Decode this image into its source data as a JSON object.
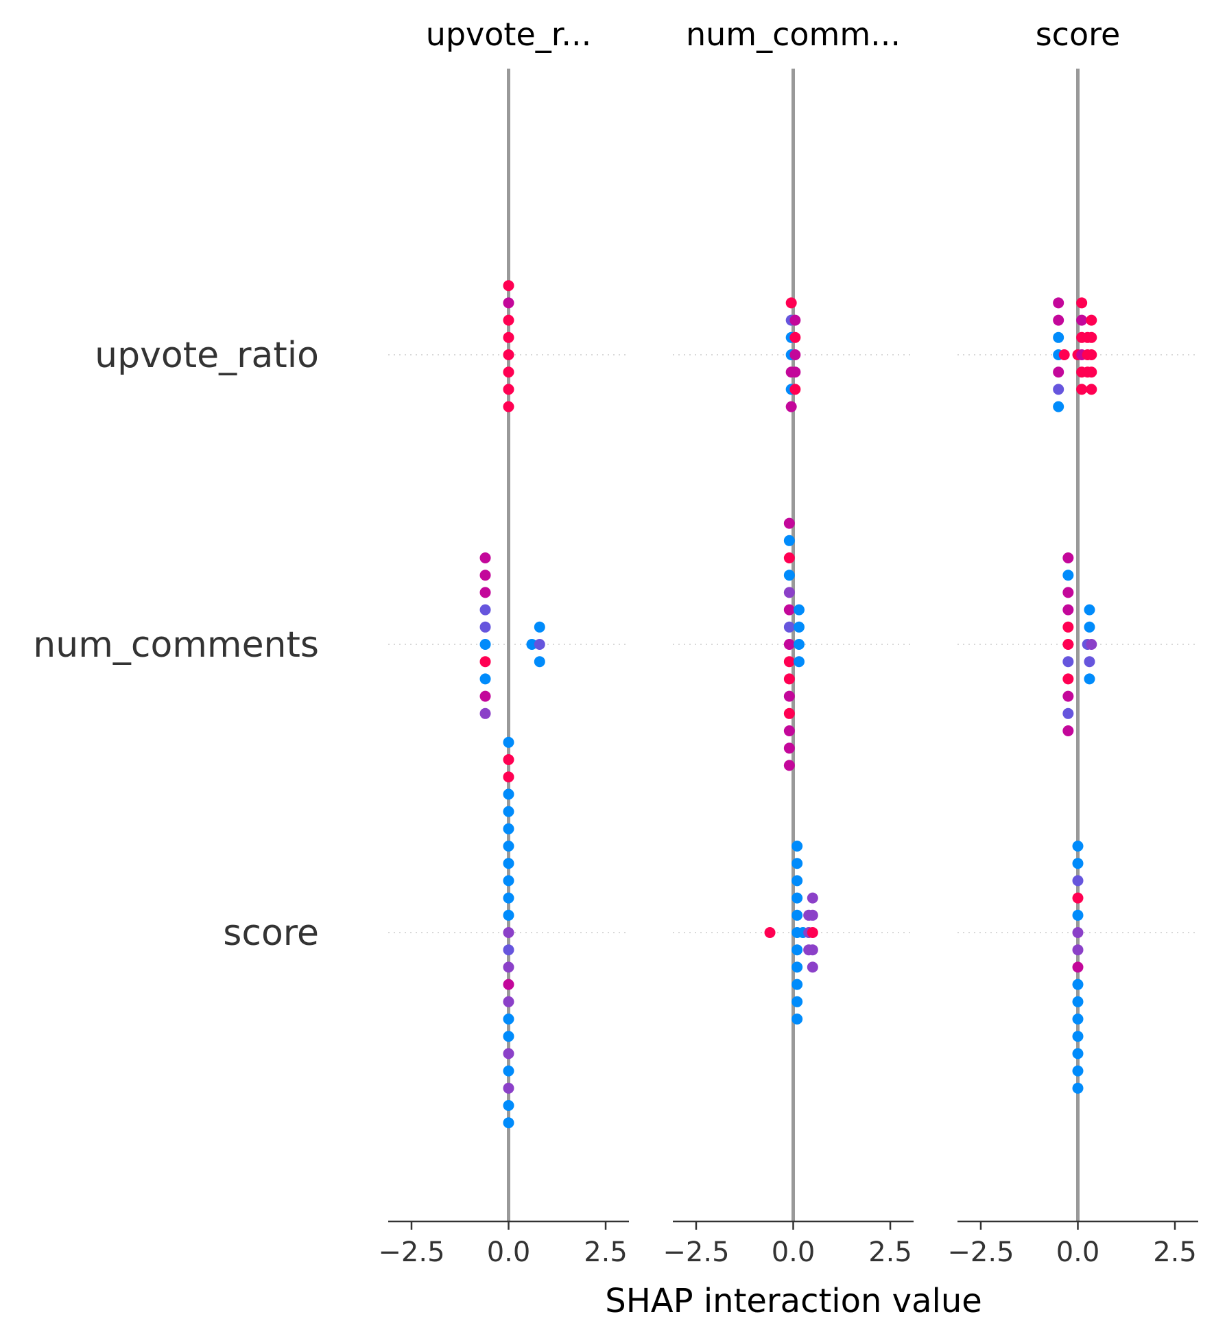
{
  "chart_data": {
    "type": "scatter",
    "subtype": "shap-interaction-summary",
    "xlabel": "SHAP interaction value",
    "features": [
      "upvote_ratio",
      "num_comments",
      "score"
    ],
    "column_titles": [
      "upvote_r...",
      "num_comm...",
      "score"
    ],
    "xlim": [
      -3.1,
      3.1
    ],
    "x_ticks": [
      -2.5,
      0.0,
      2.5
    ],
    "x_tick_labels": [
      "−2.5",
      "0.0",
      "2.5"
    ],
    "grid": "dotted horizontal row guides",
    "colors": {
      "blue": "#008bfb",
      "purple": "#8b40c8",
      "violet": "#6655dd",
      "magenta": "#c3079a",
      "red": "#ff0052",
      "zero_line": "#999999",
      "guide": "#cccccc",
      "axis": "#333333"
    },
    "panels": [
      {
        "title": "upvote_r...",
        "rows": [
          {
            "feature": "upvote_ratio",
            "points": [
              {
                "x": 0.0,
                "dy": 4,
                "c": "red"
              },
              {
                "x": 0.0,
                "dy": 3,
                "c": "magenta"
              },
              {
                "x": 0.0,
                "dy": 2,
                "c": "red"
              },
              {
                "x": 0.0,
                "dy": 1,
                "c": "red"
              },
              {
                "x": 0.0,
                "dy": 0,
                "c": "red"
              },
              {
                "x": 0.0,
                "dy": -1,
                "c": "red"
              },
              {
                "x": 0.0,
                "dy": -2,
                "c": "red"
              },
              {
                "x": 0.0,
                "dy": -3,
                "c": "red"
              }
            ]
          },
          {
            "feature": "num_comments",
            "points": [
              {
                "x": -0.6,
                "dy": 5,
                "c": "magenta"
              },
              {
                "x": -0.6,
                "dy": 4,
                "c": "magenta"
              },
              {
                "x": -0.6,
                "dy": 3,
                "c": "magenta"
              },
              {
                "x": -0.6,
                "dy": 2,
                "c": "violet"
              },
              {
                "x": -0.6,
                "dy": 1,
                "c": "violet"
              },
              {
                "x": -0.6,
                "dy": 0,
                "c": "blue"
              },
              {
                "x": -0.6,
                "dy": -1,
                "c": "red"
              },
              {
                "x": -0.6,
                "dy": -2,
                "c": "blue"
              },
              {
                "x": -0.6,
                "dy": -3,
                "c": "magenta"
              },
              {
                "x": -0.6,
                "dy": -4,
                "c": "purple"
              },
              {
                "x": 0.8,
                "dy": 1,
                "c": "blue"
              },
              {
                "x": 0.6,
                "dy": 0,
                "c": "blue"
              },
              {
                "x": 0.8,
                "dy": 0,
                "c": "violet"
              },
              {
                "x": 0.8,
                "dy": -1,
                "c": "blue"
              }
            ]
          },
          {
            "feature": "score",
            "points": [
              {
                "x": 0.0,
                "dy": 11,
                "c": "blue"
              },
              {
                "x": 0.0,
                "dy": 10,
                "c": "red"
              },
              {
                "x": 0.0,
                "dy": 9,
                "c": "red"
              },
              {
                "x": 0.0,
                "dy": 8,
                "c": "blue"
              },
              {
                "x": 0.0,
                "dy": 7,
                "c": "blue"
              },
              {
                "x": 0.0,
                "dy": 6,
                "c": "blue"
              },
              {
                "x": 0.0,
                "dy": 5,
                "c": "blue"
              },
              {
                "x": 0.0,
                "dy": 4,
                "c": "blue"
              },
              {
                "x": 0.0,
                "dy": 3,
                "c": "blue"
              },
              {
                "x": 0.0,
                "dy": 2,
                "c": "blue"
              },
              {
                "x": 0.0,
                "dy": 1,
                "c": "blue"
              },
              {
                "x": 0.0,
                "dy": 0,
                "c": "purple"
              },
              {
                "x": 0.0,
                "dy": -1,
                "c": "violet"
              },
              {
                "x": 0.0,
                "dy": -2,
                "c": "purple"
              },
              {
                "x": 0.0,
                "dy": -3,
                "c": "magenta"
              },
              {
                "x": 0.0,
                "dy": -4,
                "c": "purple"
              },
              {
                "x": 0.0,
                "dy": -5,
                "c": "blue"
              },
              {
                "x": 0.0,
                "dy": -6,
                "c": "blue"
              },
              {
                "x": 0.0,
                "dy": -7,
                "c": "purple"
              },
              {
                "x": 0.0,
                "dy": -8,
                "c": "blue"
              },
              {
                "x": 0.0,
                "dy": -9,
                "c": "purple"
              },
              {
                "x": 0.0,
                "dy": -10,
                "c": "blue"
              },
              {
                "x": 0.0,
                "dy": -11,
                "c": "blue"
              }
            ]
          }
        ]
      },
      {
        "title": "num_comm...",
        "rows": [
          {
            "feature": "upvote_ratio",
            "points": [
              {
                "x": -0.05,
                "dy": 3,
                "c": "red"
              },
              {
                "x": -0.05,
                "dy": 2,
                "c": "violet"
              },
              {
                "x": 0.05,
                "dy": 2,
                "c": "magenta"
              },
              {
                "x": -0.05,
                "dy": 1,
                "c": "blue"
              },
              {
                "x": 0.05,
                "dy": 1,
                "c": "red"
              },
              {
                "x": -0.05,
                "dy": 0,
                "c": "blue"
              },
              {
                "x": 0.05,
                "dy": 0,
                "c": "magenta"
              },
              {
                "x": -0.05,
                "dy": -1,
                "c": "magenta"
              },
              {
                "x": 0.05,
                "dy": -1,
                "c": "magenta"
              },
              {
                "x": -0.05,
                "dy": -2,
                "c": "blue"
              },
              {
                "x": 0.05,
                "dy": -2,
                "c": "red"
              },
              {
                "x": -0.05,
                "dy": -3,
                "c": "magenta"
              }
            ]
          },
          {
            "feature": "num_comments",
            "points": [
              {
                "x": -0.1,
                "dy": 7,
                "c": "magenta"
              },
              {
                "x": -0.1,
                "dy": 6,
                "c": "blue"
              },
              {
                "x": -0.1,
                "dy": 5,
                "c": "red"
              },
              {
                "x": -0.1,
                "dy": 4,
                "c": "blue"
              },
              {
                "x": -0.1,
                "dy": 3,
                "c": "purple"
              },
              {
                "x": -0.1,
                "dy": 2,
                "c": "magenta"
              },
              {
                "x": 0.15,
                "dy": 2,
                "c": "blue"
              },
              {
                "x": -0.1,
                "dy": 1,
                "c": "violet"
              },
              {
                "x": 0.15,
                "dy": 1,
                "c": "blue"
              },
              {
                "x": -0.1,
                "dy": 0,
                "c": "magenta"
              },
              {
                "x": 0.15,
                "dy": 0,
                "c": "blue"
              },
              {
                "x": -0.1,
                "dy": -1,
                "c": "red"
              },
              {
                "x": 0.15,
                "dy": -1,
                "c": "blue"
              },
              {
                "x": -0.1,
                "dy": -2,
                "c": "red"
              },
              {
                "x": -0.1,
                "dy": -3,
                "c": "magenta"
              },
              {
                "x": -0.1,
                "dy": -4,
                "c": "red"
              },
              {
                "x": -0.1,
                "dy": -5,
                "c": "magenta"
              },
              {
                "x": -0.1,
                "dy": -6,
                "c": "magenta"
              },
              {
                "x": -0.1,
                "dy": -7,
                "c": "magenta"
              }
            ]
          },
          {
            "feature": "score",
            "points": [
              {
                "x": 0.1,
                "dy": 5,
                "c": "blue"
              },
              {
                "x": 0.1,
                "dy": 4,
                "c": "blue"
              },
              {
                "x": 0.1,
                "dy": 3,
                "c": "blue"
              },
              {
                "x": 0.1,
                "dy": 2,
                "c": "blue"
              },
              {
                "x": 0.5,
                "dy": 2,
                "c": "purple"
              },
              {
                "x": 0.1,
                "dy": 1,
                "c": "blue"
              },
              {
                "x": 0.4,
                "dy": 1,
                "c": "purple"
              },
              {
                "x": 0.5,
                "dy": 1,
                "c": "purple"
              },
              {
                "x": -0.6,
                "dy": 0,
                "c": "red"
              },
              {
                "x": 0.1,
                "dy": 0,
                "c": "blue"
              },
              {
                "x": 0.25,
                "dy": 0,
                "c": "blue"
              },
              {
                "x": 0.4,
                "dy": 0,
                "c": "purple"
              },
              {
                "x": 0.5,
                "dy": 0,
                "c": "red"
              },
              {
                "x": 0.1,
                "dy": -1,
                "c": "blue"
              },
              {
                "x": 0.4,
                "dy": -1,
                "c": "purple"
              },
              {
                "x": 0.5,
                "dy": -1,
                "c": "purple"
              },
              {
                "x": 0.1,
                "dy": -2,
                "c": "blue"
              },
              {
                "x": 0.5,
                "dy": -2,
                "c": "purple"
              },
              {
                "x": 0.1,
                "dy": -3,
                "c": "blue"
              },
              {
                "x": 0.1,
                "dy": -4,
                "c": "blue"
              },
              {
                "x": 0.1,
                "dy": -5,
                "c": "blue"
              }
            ]
          }
        ]
      },
      {
        "title": "score",
        "rows": [
          {
            "feature": "upvote_ratio",
            "points": [
              {
                "x": -0.5,
                "dy": 3,
                "c": "magenta"
              },
              {
                "x": 0.1,
                "dy": 3,
                "c": "red"
              },
              {
                "x": -0.5,
                "dy": 2,
                "c": "magenta"
              },
              {
                "x": 0.1,
                "dy": 2,
                "c": "magenta"
              },
              {
                "x": 0.35,
                "dy": 2,
                "c": "red"
              },
              {
                "x": -0.5,
                "dy": 1,
                "c": "blue"
              },
              {
                "x": 0.1,
                "dy": 1,
                "c": "red"
              },
              {
                "x": 0.25,
                "dy": 1,
                "c": "red"
              },
              {
                "x": 0.35,
                "dy": 1,
                "c": "red"
              },
              {
                "x": -0.5,
                "dy": 0,
                "c": "blue"
              },
              {
                "x": -0.35,
                "dy": 0,
                "c": "red"
              },
              {
                "x": 0.0,
                "dy": 0,
                "c": "red"
              },
              {
                "x": 0.1,
                "dy": 0,
                "c": "magenta"
              },
              {
                "x": 0.25,
                "dy": 0,
                "c": "red"
              },
              {
                "x": 0.35,
                "dy": 0,
                "c": "red"
              },
              {
                "x": -0.5,
                "dy": -1,
                "c": "magenta"
              },
              {
                "x": 0.1,
                "dy": -1,
                "c": "red"
              },
              {
                "x": 0.25,
                "dy": -1,
                "c": "red"
              },
              {
                "x": 0.35,
                "dy": -1,
                "c": "red"
              },
              {
                "x": -0.5,
                "dy": -2,
                "c": "violet"
              },
              {
                "x": 0.1,
                "dy": -2,
                "c": "red"
              },
              {
                "x": 0.35,
                "dy": -2,
                "c": "red"
              },
              {
                "x": -0.5,
                "dy": -3,
                "c": "blue"
              }
            ]
          },
          {
            "feature": "num_comments",
            "points": [
              {
                "x": -0.25,
                "dy": 5,
                "c": "magenta"
              },
              {
                "x": -0.25,
                "dy": 4,
                "c": "blue"
              },
              {
                "x": -0.25,
                "dy": 3,
                "c": "magenta"
              },
              {
                "x": -0.25,
                "dy": 2,
                "c": "magenta"
              },
              {
                "x": 0.3,
                "dy": 2,
                "c": "blue"
              },
              {
                "x": -0.25,
                "dy": 1,
                "c": "red"
              },
              {
                "x": 0.3,
                "dy": 1,
                "c": "blue"
              },
              {
                "x": -0.25,
                "dy": 0,
                "c": "red"
              },
              {
                "x": 0.25,
                "dy": 0,
                "c": "violet"
              },
              {
                "x": 0.35,
                "dy": 0,
                "c": "purple"
              },
              {
                "x": -0.25,
                "dy": -1,
                "c": "violet"
              },
              {
                "x": 0.3,
                "dy": -1,
                "c": "violet"
              },
              {
                "x": -0.25,
                "dy": -2,
                "c": "red"
              },
              {
                "x": 0.3,
                "dy": -2,
                "c": "blue"
              },
              {
                "x": -0.25,
                "dy": -3,
                "c": "magenta"
              },
              {
                "x": -0.25,
                "dy": -4,
                "c": "violet"
              },
              {
                "x": -0.25,
                "dy": -5,
                "c": "magenta"
              }
            ]
          },
          {
            "feature": "score",
            "points": [
              {
                "x": 0.0,
                "dy": 5,
                "c": "blue"
              },
              {
                "x": 0.0,
                "dy": 4,
                "c": "blue"
              },
              {
                "x": 0.0,
                "dy": 3,
                "c": "violet"
              },
              {
                "x": 0.0,
                "dy": 2,
                "c": "red"
              },
              {
                "x": 0.0,
                "dy": 1,
                "c": "blue"
              },
              {
                "x": 0.0,
                "dy": 0,
                "c": "purple"
              },
              {
                "x": 0.0,
                "dy": -1,
                "c": "purple"
              },
              {
                "x": 0.0,
                "dy": -2,
                "c": "magenta"
              },
              {
                "x": 0.0,
                "dy": -3,
                "c": "blue"
              },
              {
                "x": 0.0,
                "dy": -4,
                "c": "blue"
              },
              {
                "x": 0.0,
                "dy": -5,
                "c": "blue"
              },
              {
                "x": 0.0,
                "dy": -6,
                "c": "blue"
              },
              {
                "x": 0.0,
                "dy": -7,
                "c": "blue"
              },
              {
                "x": 0.0,
                "dy": -8,
                "c": "blue"
              },
              {
                "x": 0.0,
                "dy": -9,
                "c": "blue"
              }
            ]
          }
        ]
      }
    ]
  }
}
